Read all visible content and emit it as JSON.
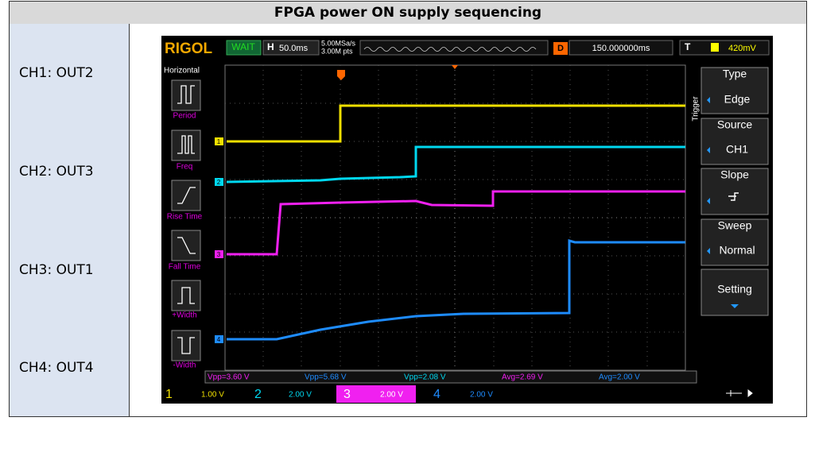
{
  "title": "FPGA power ON supply sequencing",
  "rows": [
    "CH1: OUT2",
    "CH2: OUT3",
    "CH3: OUT1",
    "CH4: OUT4"
  ],
  "scope": {
    "brand": "RIGOL",
    "status": "WAIT",
    "timebase_label": "H",
    "timebase": "50.0ms",
    "sample_rate": "5.00MSa/s",
    "points": "3.00M pts",
    "delay_label": "D",
    "delay": "150.000000ms",
    "trigger_label": "T",
    "trigger_level": "420mV",
    "left_menu_title": "Horizontal",
    "left_menu": [
      "Period",
      "Freq",
      "Rise Time",
      "Fall Time",
      "+Width",
      "-Width"
    ],
    "right_menu_title": "Trigger",
    "right_menu": [
      {
        "label": "Type",
        "value": "Edge"
      },
      {
        "label": "Source",
        "value": "CH1"
      },
      {
        "label": "Slope"
      },
      {
        "label": "Sweep",
        "value": "Normal"
      },
      {
        "label": "Setting"
      }
    ],
    "measurements": [
      "Vpp=3.60 V",
      "Vpp=5.68 V",
      "Vpp=2.08 V",
      "Avg=2.69 V",
      "Avg=2.00 V"
    ],
    "channels": [
      {
        "number": "1",
        "scale": "1.00 V"
      },
      {
        "number": "2",
        "scale": "2.00 V"
      },
      {
        "number": "3",
        "scale": "2.00 V"
      },
      {
        "number": "4",
        "scale": "2.00 V"
      }
    ]
  }
}
